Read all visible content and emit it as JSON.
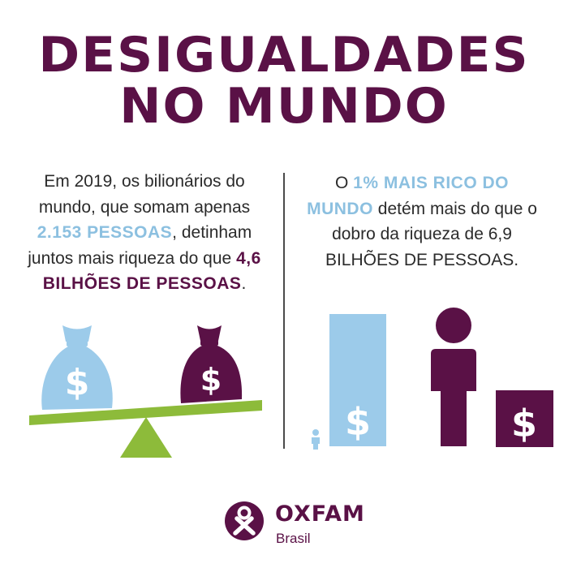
{
  "title": {
    "line1": "DESIGUALDADES",
    "line2": "NO MUNDO"
  },
  "left_text": {
    "part1": "Em 2019, os bilionários do mundo, que somam apenas ",
    "highlight1": "2.153 PESSOAS",
    "part2": ", detinham juntos mais riqueza do que ",
    "highlight2": "4,6 BILHÕES DE PESSOAS",
    "part3": "."
  },
  "right_text": {
    "part1": "O ",
    "highlight1": "1% MAIS RICO DO MUNDO",
    "part2": " detém mais do que o dobro da riqueza de 6,9 BILHÕES DE PESSOAS."
  },
  "illustration": {
    "dollar_sign": "$",
    "colors": {
      "purple": "#5a1146",
      "blue": "#9ccbea",
      "green": "#8dbb3a",
      "text": "#2b2b2b"
    }
  },
  "brand": {
    "name": "OXFAM",
    "sub": "Brasil"
  }
}
